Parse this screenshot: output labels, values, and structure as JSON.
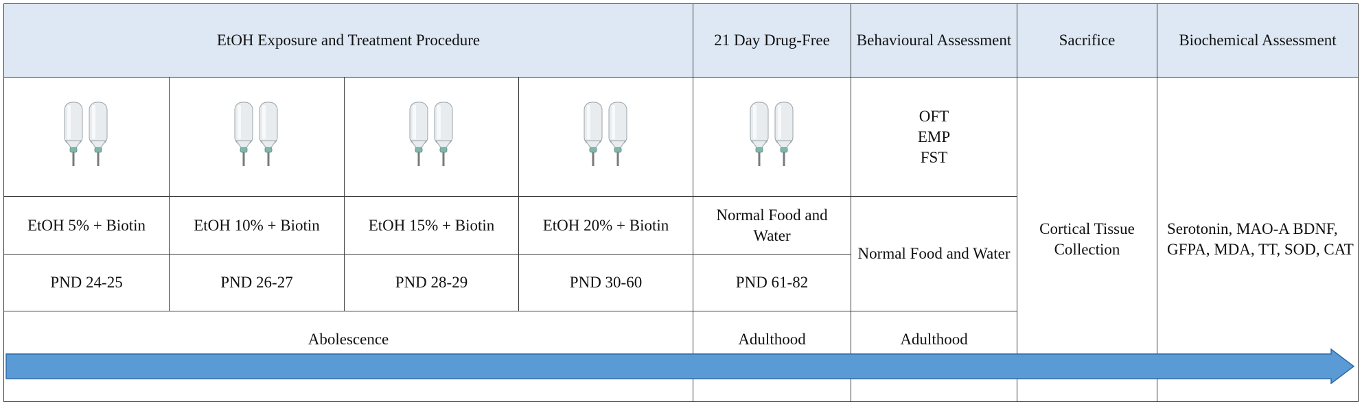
{
  "header": {
    "exposure": "EtOH Exposure and Treatment Procedure",
    "drug_free": "21 Day Drug-Free",
    "behavioural": "Behavioural Assessment",
    "sacrifice": "Sacrifice",
    "biochemical": "Biochemical Assessment"
  },
  "behavioural_tests": "OFT\nEMP\nFST",
  "treatments": [
    "EtOH 5% + Biotin",
    "EtOH 10% + Biotin",
    "EtOH 15% + Biotin",
    "EtOH 20% + Biotin"
  ],
  "drug_free_condition": "Normal Food and Water",
  "behavioural_condition": "Normal Food and Water",
  "pnd": [
    "PND 24-25",
    "PND 26-27",
    "PND 28-29",
    "PND 30-60",
    "PND 61-82"
  ],
  "stages": {
    "exposure": "Abolescence",
    "drug_free": "Adulthood",
    "behavioural": "Adulthood"
  },
  "sacrifice_detail": "Cortical Tissue Collection",
  "biochemical_markers": "Serotonin, MAO-A BDNF, GFPA, MDA, TT, SOD, CAT",
  "colors": {
    "header_fill": "#dde8f4",
    "arrow_fill": "#5b9bd5",
    "arrow_stroke": "#2e6aa6",
    "bottle_body": "#e8ecee",
    "bottle_cap": "#7fb7aa"
  },
  "icons": [
    "water-bottle-pair-icon"
  ]
}
